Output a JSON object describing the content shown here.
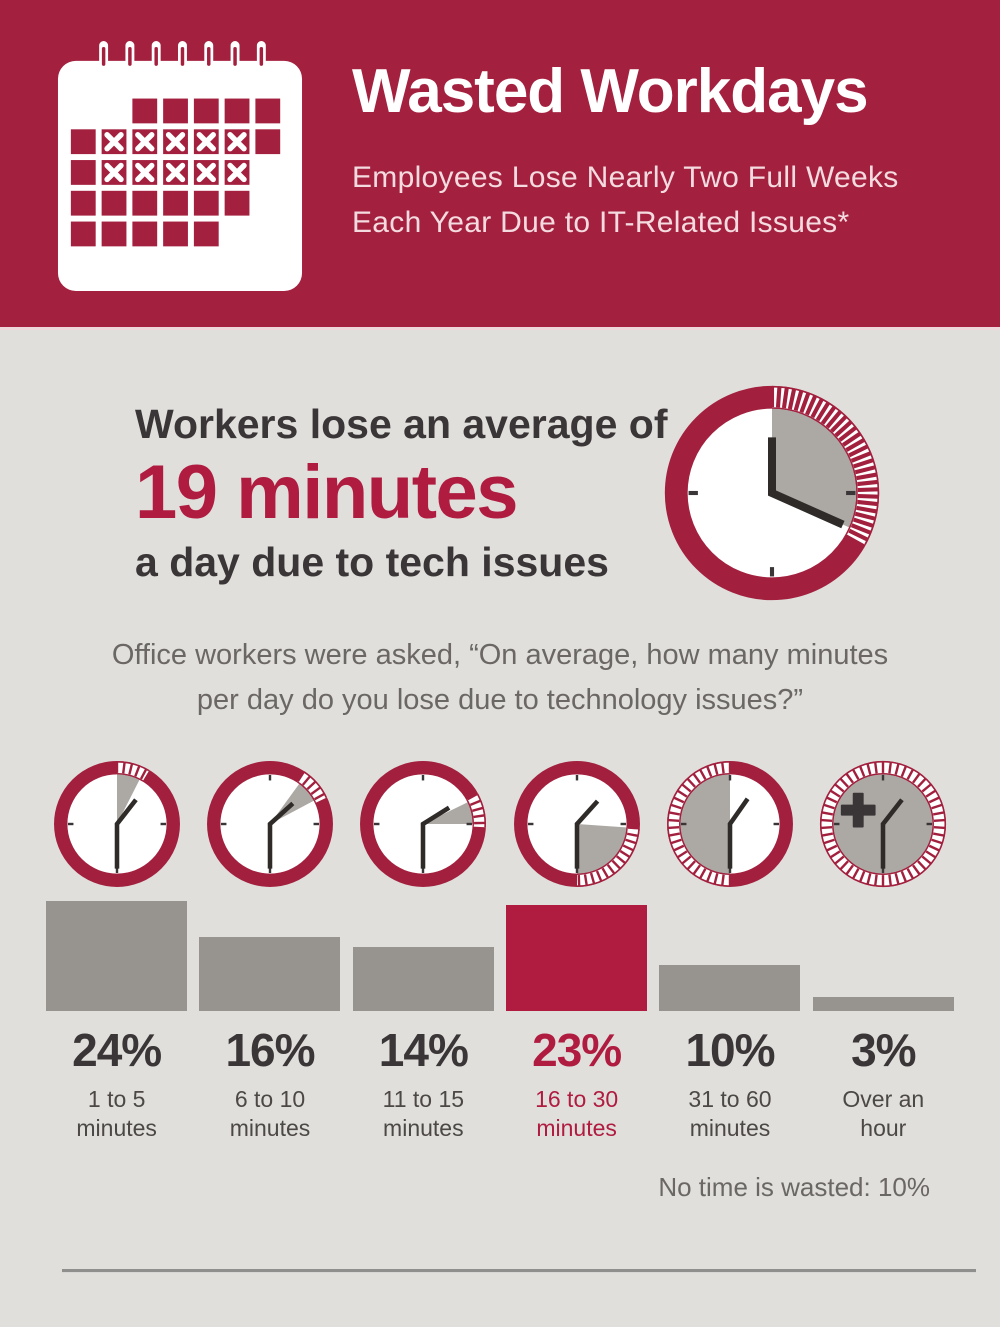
{
  "header": {
    "title": "Wasted Workdays",
    "subtitle_line1": "Employees Lose Nearly Two Full Weeks",
    "subtitle_line2": "Each Year Due to IT-Related Issues*"
  },
  "stat": {
    "line1": "Workers lose an average of",
    "highlight": "19 minutes",
    "line2": "a day due to tech issues"
  },
  "question": {
    "line1": "Office workers were asked, “On average, how many minutes",
    "line2": "per day do you lose due to technology issues?”"
  },
  "colors": {
    "header_red": "#A4203F",
    "ring_red": "#A2203E",
    "accent_red": "#B01C40",
    "bar_gray": "#97938F",
    "wedge_gray": "#ACA8A4",
    "background": "#E0DFDC",
    "dark_text": "#3A3536",
    "muted_text": "#6B6764"
  },
  "chart_data": {
    "type": "bar",
    "categories": [
      "1 to 5 minutes",
      "6 to 10 minutes",
      "11 to 15 minutes",
      "16 to 30 minutes",
      "31 to 60 minutes",
      "Over an hour"
    ],
    "values": [
      24,
      16,
      14,
      23,
      10,
      3
    ],
    "unit": "%",
    "highlight_index": 3,
    "note": "No time is wasted:  10%",
    "big_clock": {
      "wedge": [
        0,
        114
      ],
      "ticks": [
        0,
        119
      ],
      "tick_step": 4,
      "hands": [
        [
          0,
          0.66
        ],
        [
          114,
          0.92
        ]
      ],
      "hand_width": 8,
      "skip_top_tick": true
    },
    "columns": [
      {
        "pct_label": "24%",
        "value": 24,
        "range_line1": "1 to 5",
        "range_line2": "minutes",
        "highlighted": false,
        "clock": {
          "wedge": [
            0,
            27
          ],
          "ticks": [
            0,
            31
          ],
          "tick_step": 7,
          "hands": [
            [
              38,
              0.62
            ],
            [
              180,
              0.9
            ]
          ],
          "skip_top_tick": true
        }
      },
      {
        "pct_label": "16%",
        "value": 16,
        "range_line1": "6 to 10",
        "range_line2": "minutes",
        "highlighted": false,
        "clock": {
          "wedge": [
            36,
            62
          ],
          "ticks": [
            33,
            65
          ],
          "tick_step": 7,
          "hands": [
            [
              48,
              0.62
            ],
            [
              180,
              0.9
            ]
          ]
        }
      },
      {
        "pct_label": "14%",
        "value": 14,
        "range_line1": "11 to 15",
        "range_line2": "minutes",
        "highlighted": false,
        "clock": {
          "wedge": [
            64,
            90
          ],
          "ticks": [
            61,
            93
          ],
          "tick_step": 7,
          "hands": [
            [
              58,
              0.62
            ],
            [
              180,
              0.9
            ]
          ]
        }
      },
      {
        "pct_label": "23%",
        "value": 23,
        "range_line1": "16 to 30",
        "range_line2": "minutes",
        "highlighted": true,
        "clock": {
          "wedge": [
            94,
            180
          ],
          "ticks": [
            94,
            180
          ],
          "tick_step": 7,
          "hands": [
            [
              42,
              0.62
            ],
            [
              180,
              0.9
            ]
          ]
        }
      },
      {
        "pct_label": "10%",
        "value": 10,
        "range_line1": "31 to 60",
        "range_line2": "minutes",
        "highlighted": false,
        "clock": {
          "wedge": [
            180,
            360
          ],
          "ticks": [
            180,
            360
          ],
          "tick_step": 7.2,
          "hands": [
            [
              35,
              0.62
            ],
            [
              180,
              0.9
            ]
          ]
        }
      },
      {
        "pct_label": "3%",
        "value": 3,
        "range_line1": "Over an",
        "range_line2": "hour",
        "highlighted": false,
        "clock": {
          "full_gray": true,
          "ticks": [
            0,
            360
          ],
          "tick_step": 7.2,
          "hands": [
            [
              38,
              0.62
            ],
            [
              180,
              0.9
            ]
          ],
          "plus": true
        }
      }
    ]
  }
}
